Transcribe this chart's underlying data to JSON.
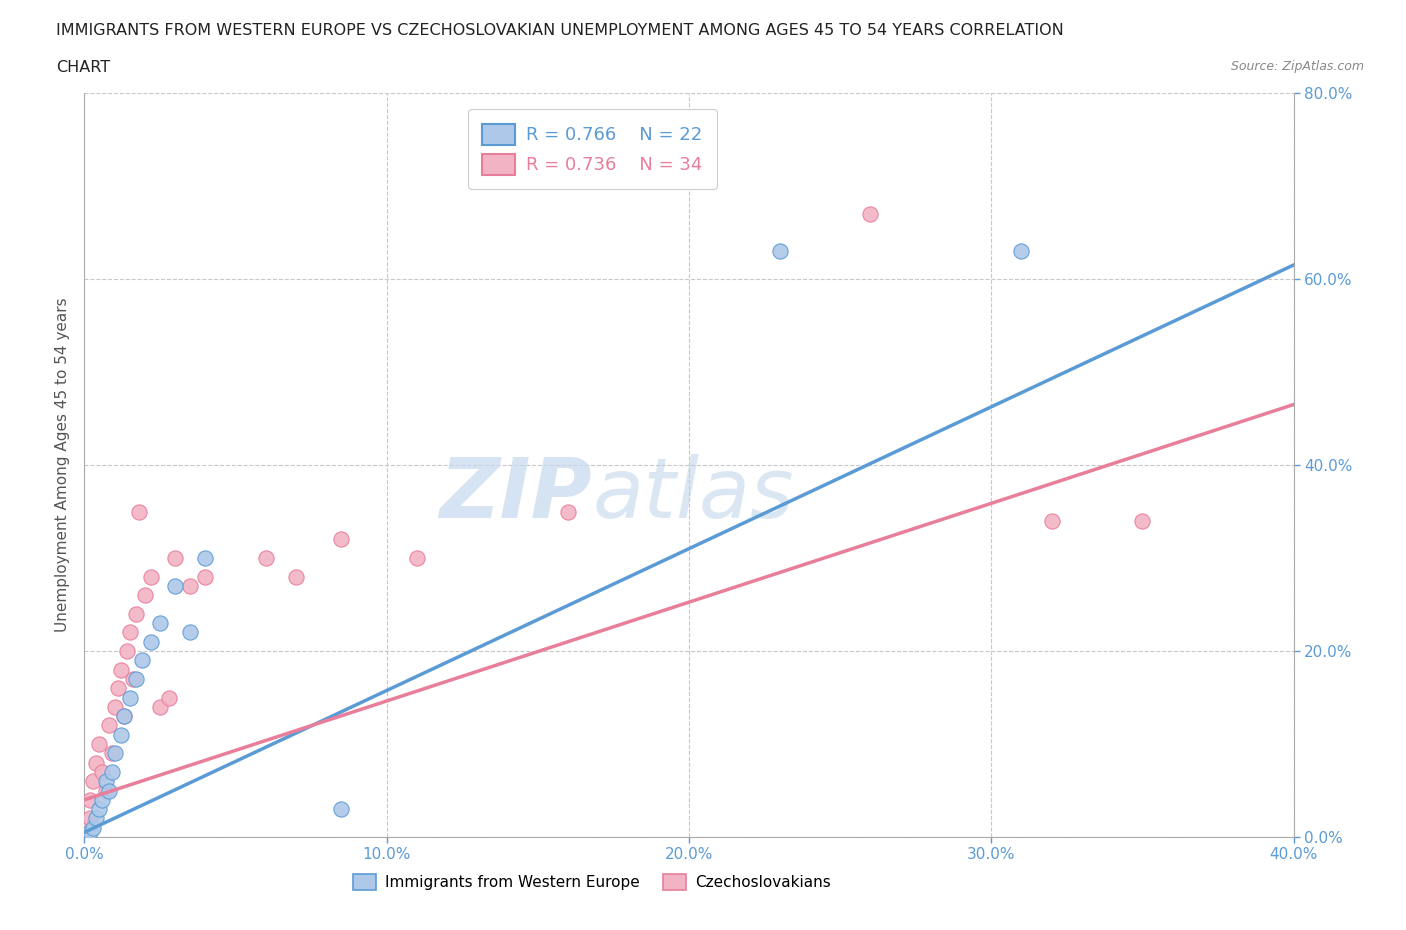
{
  "title_line1": "IMMIGRANTS FROM WESTERN EUROPE VS CZECHOSLOVAKIAN UNEMPLOYMENT AMONG AGES 45 TO 54 YEARS CORRELATION",
  "title_line2": "CHART",
  "source": "Source: ZipAtlas.com",
  "ylabel": "Unemployment Among Ages 45 to 54 years",
  "xlim": [
    0.0,
    0.4
  ],
  "ylim": [
    0.0,
    0.8
  ],
  "xtick_vals": [
    0.0,
    0.1,
    0.2,
    0.3,
    0.4
  ],
  "ytick_vals": [
    0.0,
    0.2,
    0.4,
    0.6,
    0.8
  ],
  "blue_scatter": [
    [
      0.002,
      0.005
    ],
    [
      0.003,
      0.01
    ],
    [
      0.004,
      0.02
    ],
    [
      0.005,
      0.03
    ],
    [
      0.006,
      0.04
    ],
    [
      0.007,
      0.06
    ],
    [
      0.008,
      0.05
    ],
    [
      0.009,
      0.07
    ],
    [
      0.01,
      0.09
    ],
    [
      0.012,
      0.11
    ],
    [
      0.013,
      0.13
    ],
    [
      0.015,
      0.15
    ],
    [
      0.017,
      0.17
    ],
    [
      0.019,
      0.19
    ],
    [
      0.022,
      0.21
    ],
    [
      0.025,
      0.23
    ],
    [
      0.03,
      0.27
    ],
    [
      0.035,
      0.22
    ],
    [
      0.04,
      0.3
    ],
    [
      0.085,
      0.03
    ],
    [
      0.23,
      0.63
    ],
    [
      0.31,
      0.63
    ]
  ],
  "pink_scatter": [
    [
      0.001,
      0.01
    ],
    [
      0.002,
      0.02
    ],
    [
      0.002,
      0.04
    ],
    [
      0.003,
      0.06
    ],
    [
      0.004,
      0.08
    ],
    [
      0.005,
      0.1
    ],
    [
      0.006,
      0.07
    ],
    [
      0.007,
      0.05
    ],
    [
      0.008,
      0.12
    ],
    [
      0.009,
      0.09
    ],
    [
      0.01,
      0.14
    ],
    [
      0.011,
      0.16
    ],
    [
      0.012,
      0.18
    ],
    [
      0.013,
      0.13
    ],
    [
      0.014,
      0.2
    ],
    [
      0.015,
      0.22
    ],
    [
      0.016,
      0.17
    ],
    [
      0.017,
      0.24
    ],
    [
      0.018,
      0.35
    ],
    [
      0.02,
      0.26
    ],
    [
      0.022,
      0.28
    ],
    [
      0.025,
      0.14
    ],
    [
      0.028,
      0.15
    ],
    [
      0.03,
      0.3
    ],
    [
      0.035,
      0.27
    ],
    [
      0.04,
      0.28
    ],
    [
      0.06,
      0.3
    ],
    [
      0.07,
      0.28
    ],
    [
      0.085,
      0.32
    ],
    [
      0.11,
      0.3
    ],
    [
      0.16,
      0.35
    ],
    [
      0.26,
      0.67
    ],
    [
      0.32,
      0.34
    ],
    [
      0.35,
      0.34
    ]
  ],
  "blue_R": 0.766,
  "blue_N": 22,
  "pink_R": 0.736,
  "pink_N": 34,
  "blue_line_color": "#5b9bd5",
  "pink_line_color": "#e87e9a",
  "blue_scatter_facecolor": "#adc8e8",
  "pink_scatter_facecolor": "#f2b3c5",
  "blue_trend_x": [
    0.0,
    0.4
  ],
  "blue_trend_y": [
    0.005,
    0.615
  ],
  "pink_trend_x": [
    0.0,
    0.4
  ],
  "pink_trend_y": [
    0.04,
    0.465
  ],
  "watermark_zip": "ZIP",
  "watermark_atlas": "atlas",
  "background_color": "#ffffff",
  "grid_color": "#c8c8c8",
  "title_color": "#222222",
  "tick_color": "#5b9bd5",
  "legend_r_color": "#336699",
  "legend_n_color": "#cc3366"
}
